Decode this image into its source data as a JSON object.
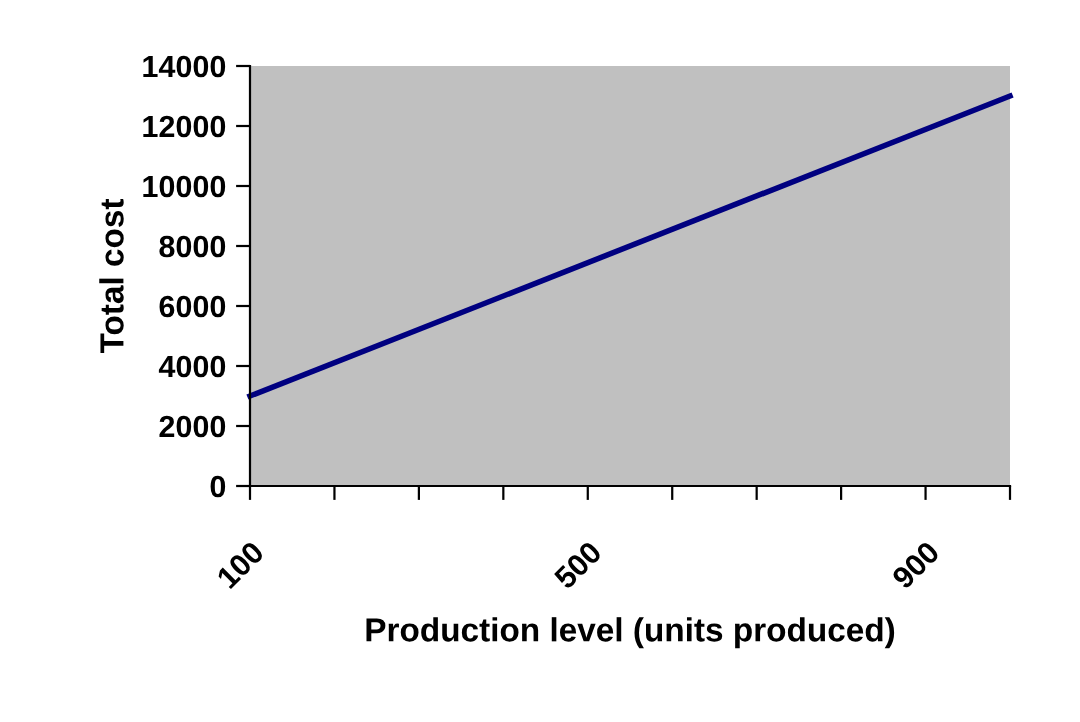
{
  "chart_data": {
    "type": "line",
    "xlabel": "Production level (units produced)",
    "ylabel": "Total cost",
    "x": [
      100,
      1000
    ],
    "series": [
      {
        "color": "#000080",
        "values": [
          3000,
          13000
        ]
      }
    ],
    "xlim": [
      100,
      1000
    ],
    "xticks": [
      100,
      {
        "value": 200,
        "label": null
      },
      {
        "value": 300,
        "label": null
      },
      {
        "value": 400,
        "label": null
      },
      500,
      {
        "value": 600,
        "label": null
      },
      {
        "value": 700,
        "label": null
      },
      {
        "value": 800,
        "label": null
      },
      900,
      {
        "value": 1000,
        "label": null
      }
    ],
    "ylim": [
      0,
      14000
    ],
    "yticks": [
      0,
      2000,
      4000,
      6000,
      8000,
      10000,
      12000,
      14000
    ],
    "grid": false,
    "legend": false,
    "marker": "none",
    "line_style": "solid"
  }
}
